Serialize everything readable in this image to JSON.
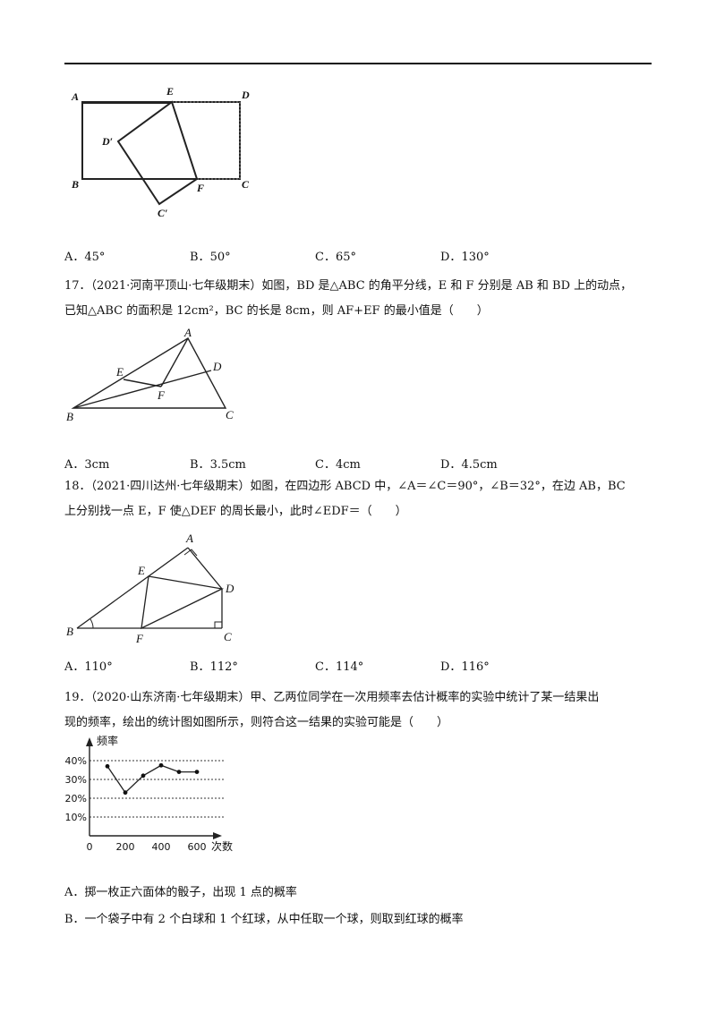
{
  "q16": {
    "figure_labels": {
      "a": "A",
      "b": "B",
      "c": "C",
      "d": "D",
      "e": "E",
      "f": "F",
      "d_prime": "D′",
      "c_prime": "C′"
    },
    "options": [
      {
        "key": "A．",
        "text": "45°"
      },
      {
        "key": "B．",
        "text": "50°"
      },
      {
        "key": "C．",
        "text": "65°"
      },
      {
        "key": "D．",
        "text": "130°"
      }
    ]
  },
  "q17": {
    "number": "17．",
    "source": "（2021·河南平顶山·七年级期末）",
    "line1": "如图，BD 是△ABC 的角平分线，E 和 F 分别是 AB 和 BD 上的动点，",
    "line2": "已知△ABC 的面积是 12cm²，BC 的长是 8cm，则 AF+EF 的最小值是（　　）",
    "figure_labels": {
      "a": "A",
      "b": "B",
      "c": "C",
      "d": "D",
      "e": "E",
      "f": "F"
    },
    "options": [
      {
        "key": "A．",
        "text": "3cm"
      },
      {
        "key": "B．",
        "text": "3.5cm"
      },
      {
        "key": "C．",
        "text": "4cm"
      },
      {
        "key": "D．",
        "text": "4.5cm"
      }
    ]
  },
  "q18": {
    "number": "18．",
    "source": "（2021·四川达州·七年级期末）",
    "line1": "如图，在四边形 ABCD 中，∠A＝∠C＝90°，∠B＝32°，在边 AB，BC",
    "line2": "上分别找一点 E，F 使△DEF 的周长最小，此时∠EDF＝（　　）",
    "figure_labels": {
      "a": "A",
      "b": "B",
      "c": "C",
      "d": "D",
      "e": "E",
      "f": "F"
    },
    "options": [
      {
        "key": "A．",
        "text": "110°"
      },
      {
        "key": "B．",
        "text": "112°"
      },
      {
        "key": "C．",
        "text": "114°"
      },
      {
        "key": "D．",
        "text": "116°"
      }
    ]
  },
  "q19": {
    "number": "19．",
    "source": "（2020·山东济南·七年级期末）",
    "line1": "甲、乙两位同学在一次用频率去估计概率的实验中统计了某一结果出",
    "line2": "现的频率，绘出的统计图如图所示，则符合这一结果的实验可能是（　　）",
    "option_a": "A．掷一枚正六面体的骰子，出现 1 点的概率",
    "option_b": "B．一个袋子中有 2 个白球和 1 个红球，从中任取一个球，则取到红球的概率"
  },
  "chart_data": {
    "type": "line",
    "ylabel": "频率",
    "xlabel": "次数",
    "x_ticks": [
      "0",
      "200",
      "400",
      "600"
    ],
    "y_ticks": [
      "10%",
      "20%",
      "30%",
      "40%"
    ],
    "xlim": [
      0,
      600
    ],
    "ylim": [
      0,
      40
    ],
    "grid": "dashed horizontal at 10%, 20%, 30%, 40%",
    "series": [
      {
        "x": [
          100,
          200,
          300,
          400,
          500,
          600
        ],
        "values": [
          37,
          23,
          32,
          37.5,
          34,
          34
        ]
      }
    ]
  }
}
